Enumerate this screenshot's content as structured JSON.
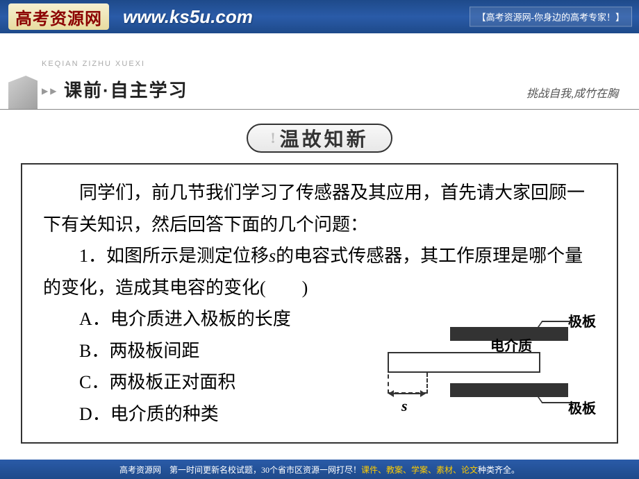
{
  "banner": {
    "logo_text": "高考资源网",
    "url": "www.ks5u.com",
    "tagline": "【高考资源网-你身边的高考专家！】"
  },
  "section": {
    "pinyin": "KEQIAN ZIZHU XUEXI",
    "arrows": "▶ ▶",
    "title": "课前·自主学习",
    "subtitle": "挑战自我,成竹在胸"
  },
  "review_badge": {
    "icon": "!",
    "text": "温故知新"
  },
  "content": {
    "intro": "同学们，前几节我们学习了传感器及其应用，首先请大家回顾一下有关知识，然后回答下面的几个问题：",
    "question_prefix": "1．如图所示是测定位移",
    "question_var": "s",
    "question_suffix": "的电容式传感器，其工作原理是哪个量的变化，造成其电容的变化(　　)",
    "options": {
      "a": "A．电介质进入极板的长度",
      "b": "B．两极板间距",
      "c": "C．两极板正对面积",
      "d": "D．电介质的种类"
    }
  },
  "diagram": {
    "plate_label": "极板",
    "dielectric_label": "电介质",
    "s_label": "s"
  },
  "footer": {
    "brand": "高考资源网",
    "text_prefix": "第一时间更新名校试题，30个省市区资源一网打尽！",
    "text_highlight": "课件、教案、学案、素材、论文",
    "text_suffix": "种类齐全。"
  },
  "colors": {
    "banner_bg": "#1e4a8a",
    "logo_bg": "#e8dca0",
    "logo_color": "#8b0000",
    "text": "#000000",
    "highlight": "#ffcc00"
  }
}
